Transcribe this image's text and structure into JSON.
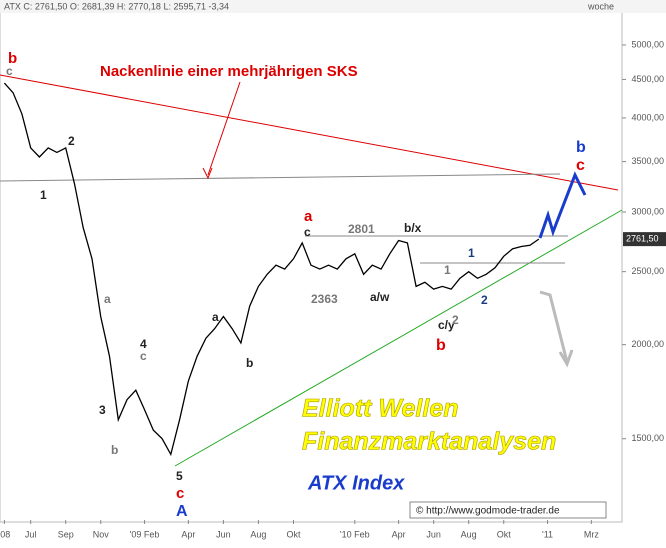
{
  "header": "ATX C: 2761,50 O: 2681,39 H: 2770,18 L: 2595,71 -3,34",
  "period": "woche",
  "price_marker": "2761,50",
  "chart_data": {
    "type": "line",
    "title": "Nackenlinie einer mehrjährigen SKS",
    "log_scale": true,
    "grid": false,
    "color": "#000000",
    "categories": [
      null,
      null,
      null,
      null,
      null,
      null,
      null,
      null,
      null,
      null,
      null,
      null,
      null,
      null,
      null,
      null,
      null,
      null,
      null,
      null,
      null,
      null,
      null,
      null,
      null,
      null,
      null,
      null,
      null,
      null,
      null,
      null,
      null,
      null,
      null,
      null,
      null,
      null,
      null,
      null,
      null,
      null,
      null,
      null,
      null,
      null,
      null,
      null,
      null,
      null,
      null,
      null,
      null,
      null,
      null,
      null,
      null,
      null,
      null,
      null,
      null,
      null
    ],
    "values": [
      4450,
      4320,
      4050,
      3650,
      3550,
      3650,
      3600,
      3650,
      3270,
      2860,
      2600,
      2180,
      1930,
      1590,
      1690,
      1740,
      1640,
      1540,
      1500,
      1430,
      1590,
      1790,
      1930,
      2040,
      2100,
      2180,
      2100,
      2010,
      2250,
      2390,
      2480,
      2550,
      2520,
      2600,
      2730,
      2550,
      2520,
      2550,
      2520,
      2600,
      2640,
      2480,
      2550,
      2520,
      2640,
      2750,
      2730,
      2390,
      2420,
      2370,
      2390,
      2370,
      2450,
      2500,
      2450,
      2480,
      2530,
      2620,
      2680,
      2700,
      2710,
      2761.5
    ],
    "xlim": [
      -0.5,
      70.5
    ],
    "xticks": [
      {
        "value": 0,
        "label": "'08"
      },
      {
        "value": 3,
        "label": "Jul"
      },
      {
        "value": 7,
        "label": "Sep"
      },
      {
        "value": 11,
        "label": "Nov"
      },
      {
        "value": 16,
        "label": "'09 Feb"
      },
      {
        "value": 21,
        "label": "Apr"
      },
      {
        "value": 25,
        "label": "Jun"
      },
      {
        "value": 29,
        "label": "Aug"
      },
      {
        "value": 33,
        "label": "Okt"
      },
      {
        "value": 40,
        "label": "'10 Feb"
      },
      {
        "value": 45,
        "label": "Apr"
      },
      {
        "value": 49,
        "label": "Jun"
      },
      {
        "value": 53,
        "label": "Aug"
      },
      {
        "value": 57,
        "label": "Okt"
      },
      {
        "value": 62,
        "label": "'11"
      },
      {
        "value": 67,
        "label": "Mrz"
      }
    ],
    "ylim": [
      1170,
      5530
    ],
    "yticks": [
      {
        "value": 1500,
        "label": "1500,00"
      },
      {
        "value": 2000,
        "label": "2000,00"
      },
      {
        "value": 2500,
        "label": "2500,00"
      },
      {
        "value": 3000,
        "label": "3000,00"
      },
      {
        "value": 3500,
        "label": "3500,00"
      },
      {
        "value": 4000,
        "label": "4000,00"
      },
      {
        "value": 4500,
        "label": "4500,00"
      },
      {
        "value": 5000,
        "label": "5000,00"
      }
    ]
  },
  "annotations": [
    "b",
    "c",
    "1",
    "2",
    "a",
    "3",
    "b",
    "4",
    "c",
    "5",
    "c",
    "A",
    "a",
    "b",
    "a",
    "c",
    "2801",
    "2363",
    "a/w",
    "b/x",
    "c/y",
    "b",
    "1",
    "2",
    "1",
    "2",
    "b",
    "c",
    "Elliott Wellen",
    "Finanzmarktanalysen",
    "ATX Index",
    "© http://www.godmode-trader.de"
  ]
}
